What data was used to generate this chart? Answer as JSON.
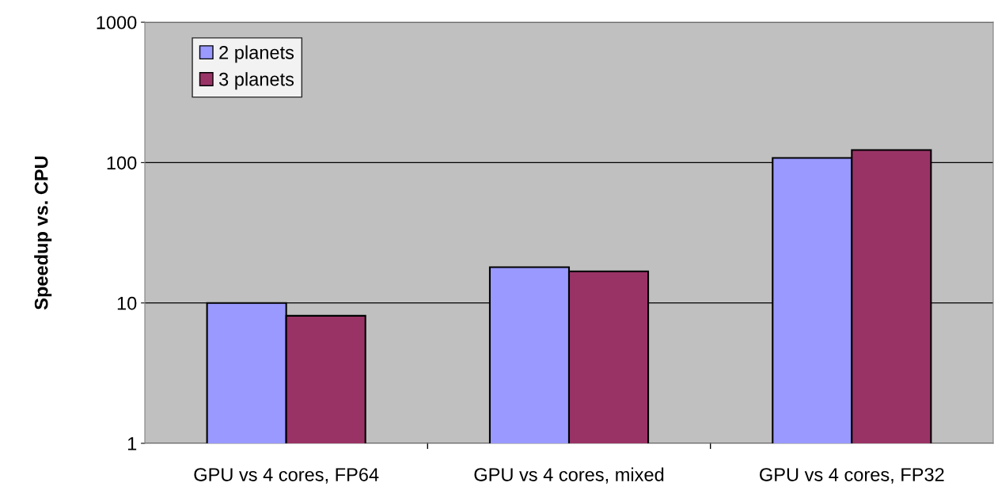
{
  "chart_data": {
    "type": "bar",
    "ylabel": "Speedup vs. CPU",
    "categories": [
      "GPU vs 4 cores, FP64",
      "GPU vs 4 cores, mixed",
      "GPU vs 4 cores, FP32"
    ],
    "series": [
      {
        "name": "2 planets",
        "color": "#9999ff",
        "values": [
          10,
          18,
          108
        ]
      },
      {
        "name": "3 planets",
        "color": "#993366",
        "values": [
          8.1,
          16.8,
          123
        ]
      }
    ],
    "log": true,
    "ylim": [
      1,
      1000
    ],
    "yticks": [
      1,
      10,
      100,
      1000
    ],
    "grid": "y",
    "legend": "top left"
  }
}
